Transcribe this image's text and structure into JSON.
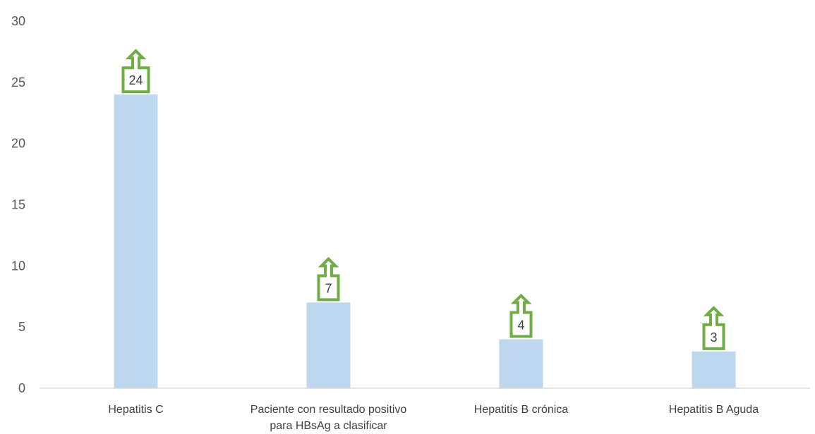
{
  "chart_data": {
    "type": "bar",
    "title": "",
    "xlabel": "",
    "ylabel": "",
    "categories": [
      "Hepatitis C",
      "Paciente con resultado positivo para HBsAg a clasificar",
      "Hepatitis B crónica",
      "Hepatitis B Aguda"
    ],
    "category_lines": [
      [
        "Hepatitis C"
      ],
      [
        "Paciente con resultado positivo",
        "para HBsAg a clasificar"
      ],
      [
        "Hepatitis B crónica"
      ],
      [
        "Hepatitis B Aguda"
      ]
    ],
    "values": [
      24,
      7,
      4,
      3
    ],
    "data_labels": [
      "24",
      "7",
      "4",
      "3"
    ],
    "ylim": [
      0,
      30
    ],
    "yticks": [
      0,
      5,
      10,
      15,
      20,
      25,
      30
    ],
    "ytick_labels": [
      "0",
      "5",
      "10",
      "15",
      "20",
      "25",
      "30"
    ],
    "grid": false,
    "legend": "none",
    "colors": {
      "bar": "#BDD7EE",
      "label_callout": "#70AD47",
      "axis_line": "#D9D9D9",
      "tick_text": "#595959",
      "category_text": "#404040"
    },
    "label_style": "up-arrow-callout"
  }
}
